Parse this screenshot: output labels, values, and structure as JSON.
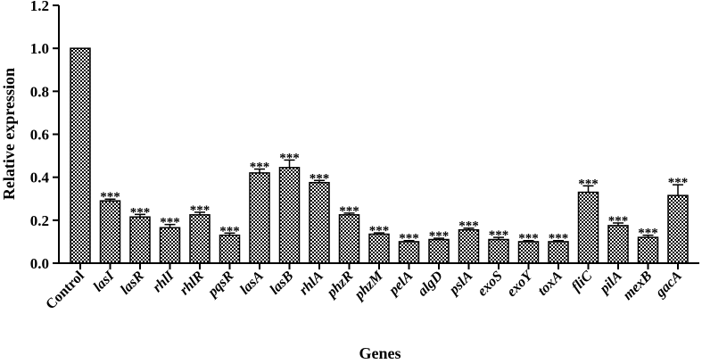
{
  "chart_data": {
    "type": "bar",
    "xlabel": "Genes",
    "ylabel": "Relative expression",
    "ylim": [
      0,
      1.2
    ],
    "yticks": [
      "0.0",
      "0.2",
      "0.4",
      "0.6",
      "0.8",
      "1.0",
      "1.2"
    ],
    "categories": [
      "Control",
      "lasI",
      "lasR",
      "rhlI",
      "rhlR",
      "pqsR",
      "lasA",
      "lasB",
      "rhlA",
      "phzR",
      "phzM",
      "pelA",
      "algD",
      "pslA",
      "exoS",
      "exoY",
      "toxA",
      "fliC",
      "pilA",
      "mexB",
      "gacA"
    ],
    "values": [
      1.0,
      0.29,
      0.215,
      0.165,
      0.225,
      0.13,
      0.42,
      0.445,
      0.375,
      0.225,
      0.135,
      0.1,
      0.11,
      0.155,
      0.11,
      0.1,
      0.1,
      0.33,
      0.175,
      0.12,
      0.315
    ],
    "errors": [
      0.0,
      0.008,
      0.012,
      0.015,
      0.012,
      0.01,
      0.018,
      0.035,
      0.01,
      0.008,
      0.006,
      0.005,
      0.006,
      0.008,
      0.01,
      0.005,
      0.005,
      0.03,
      0.012,
      0.01,
      0.05
    ],
    "significance": [
      "",
      "***",
      "***",
      "***",
      "***",
      "***",
      "***",
      "***",
      "***",
      "***",
      "***",
      "***",
      "***",
      "***",
      "***",
      "***",
      "***",
      "***",
      "***",
      "***",
      "***"
    ],
    "fill": "checkered black/white",
    "grid": false,
    "legend": "none"
  }
}
